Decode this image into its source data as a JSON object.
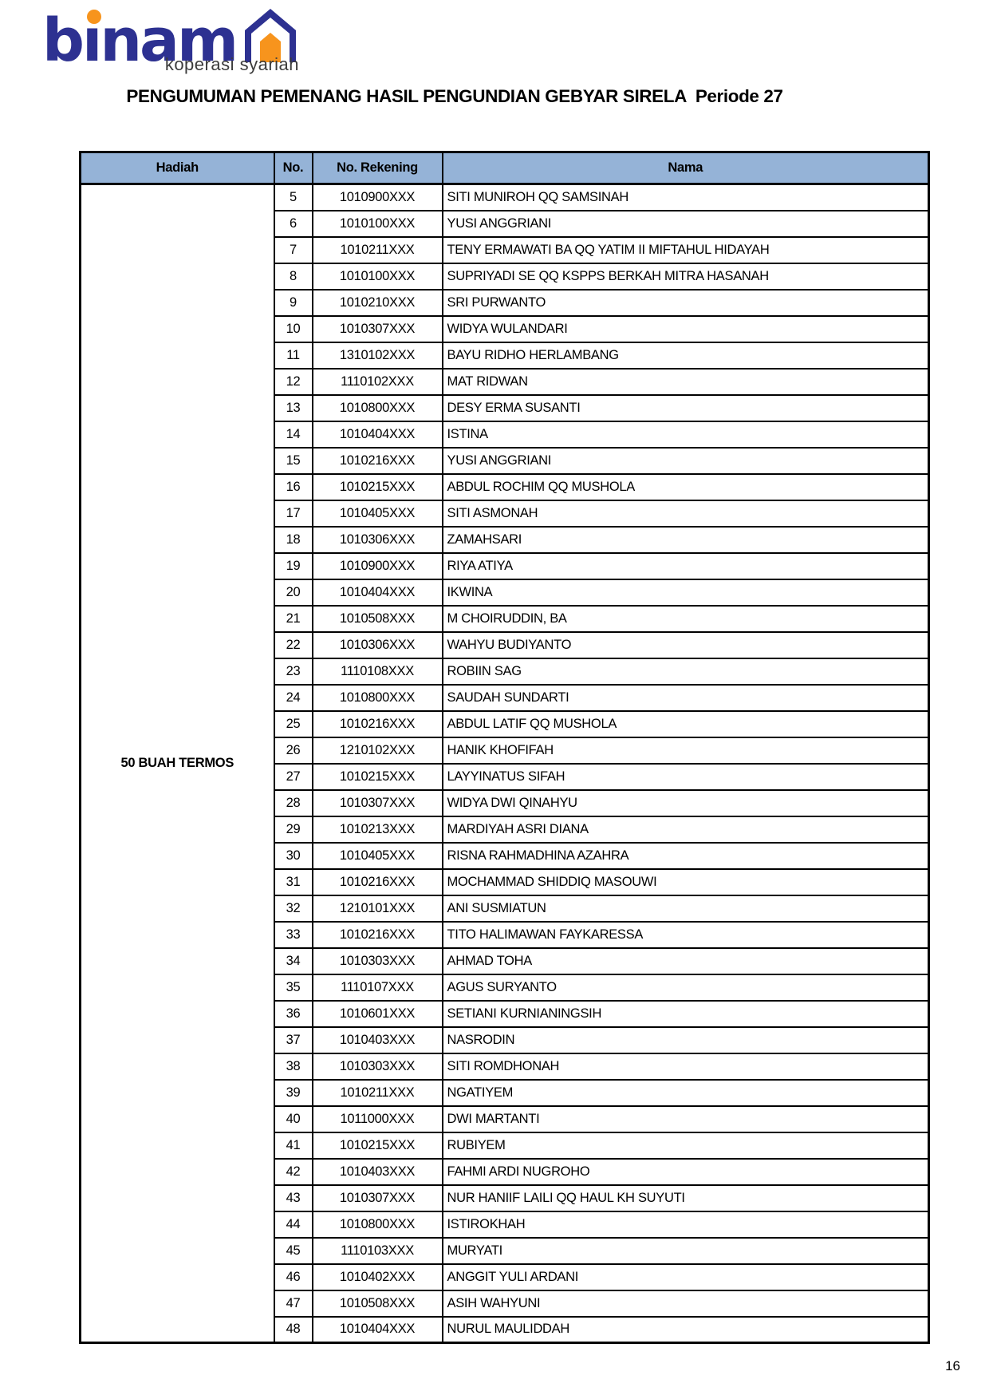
{
  "logo": {
    "brand": "binama",
    "brand_display": "bınam",
    "tagline": "koperasi syariah",
    "colors": {
      "blue": "#2D3191",
      "orange": "#F7941D"
    }
  },
  "title": "PENGUMUMAN PEMENANG HASIL PENGUNDIAN GEBYAR SIRELA  Periode 27",
  "page_number": "16",
  "colors": {
    "header_fill": "#95B3D7",
    "border": "#000000"
  },
  "table": {
    "columns": {
      "hadiah": "Hadiah",
      "no": "No.",
      "rekening": "No. Rekening",
      "nama": "Nama"
    },
    "prize": "50 BUAH TERMOS",
    "rows": [
      {
        "no": "5",
        "rekening": "1010900XXX",
        "nama": "SITI MUNIROH QQ SAMSINAH"
      },
      {
        "no": "6",
        "rekening": "1010100XXX",
        "nama": "YUSI ANGGRIANI"
      },
      {
        "no": "7",
        "rekening": "1010211XXX",
        "nama": "TENY ERMAWATI BA QQ YATIM II MIFTAHUL HIDAYAH"
      },
      {
        "no": "8",
        "rekening": "1010100XXX",
        "nama": "SUPRIYADI SE QQ KSPPS BERKAH MITRA HASANAH"
      },
      {
        "no": "9",
        "rekening": "1010210XXX",
        "nama": "SRI PURWANTO"
      },
      {
        "no": "10",
        "rekening": "1010307XXX",
        "nama": "WIDYA WULANDARI"
      },
      {
        "no": "11",
        "rekening": "1310102XXX",
        "nama": "BAYU RIDHO HERLAMBANG"
      },
      {
        "no": "12",
        "rekening": "1110102XXX",
        "nama": "MAT RIDWAN"
      },
      {
        "no": "13",
        "rekening": "1010800XXX",
        "nama": "DESY ERMA SUSANTI"
      },
      {
        "no": "14",
        "rekening": "1010404XXX",
        "nama": "ISTINA"
      },
      {
        "no": "15",
        "rekening": "1010216XXX",
        "nama": "YUSI ANGGRIANI"
      },
      {
        "no": "16",
        "rekening": "1010215XXX",
        "nama": "ABDUL ROCHIM QQ MUSHOLA"
      },
      {
        "no": "17",
        "rekening": "1010405XXX",
        "nama": "SITI ASMONAH"
      },
      {
        "no": "18",
        "rekening": "1010306XXX",
        "nama": "ZAMAHSARI"
      },
      {
        "no": "19",
        "rekening": "1010900XXX",
        "nama": "RIYA ATIYA"
      },
      {
        "no": "20",
        "rekening": "1010404XXX",
        "nama": "IKWINA"
      },
      {
        "no": "21",
        "rekening": "1010508XXX",
        "nama": "M CHOIRUDDIN, BA"
      },
      {
        "no": "22",
        "rekening": "1010306XXX",
        "nama": "WAHYU BUDIYANTO"
      },
      {
        "no": "23",
        "rekening": "1110108XXX",
        "nama": "ROBIIN SAG"
      },
      {
        "no": "24",
        "rekening": "1010800XXX",
        "nama": "SAUDAH SUNDARTI"
      },
      {
        "no": "25",
        "rekening": "1010216XXX",
        "nama": "ABDUL LATIF QQ MUSHOLA"
      },
      {
        "no": "26",
        "rekening": "1210102XXX",
        "nama": "HANIK KHOFIFAH"
      },
      {
        "no": "27",
        "rekening": "1010215XXX",
        "nama": "LAYYINATUS SIFAH"
      },
      {
        "no": "28",
        "rekening": "1010307XXX",
        "nama": "WIDYA DWI QINAHYU"
      },
      {
        "no": "29",
        "rekening": "1010213XXX",
        "nama": "MARDIYAH ASRI DIANA"
      },
      {
        "no": "30",
        "rekening": "1010405XXX",
        "nama": "RISNA RAHMADHINA AZAHRA"
      },
      {
        "no": "31",
        "rekening": "1010216XXX",
        "nama": "MOCHAMMAD SHIDDIQ MASOUWI"
      },
      {
        "no": "32",
        "rekening": "1210101XXX",
        "nama": "ANI SUSMIATUN"
      },
      {
        "no": "33",
        "rekening": "1010216XXX",
        "nama": "TITO HALIMAWAN FAYKARESSA"
      },
      {
        "no": "34",
        "rekening": "1010303XXX",
        "nama": "AHMAD TOHA"
      },
      {
        "no": "35",
        "rekening": "1110107XXX",
        "nama": "AGUS SURYANTO"
      },
      {
        "no": "36",
        "rekening": "1010601XXX",
        "nama": "SETIANI KURNIANINGSIH"
      },
      {
        "no": "37",
        "rekening": "1010403XXX",
        "nama": "NASRODIN"
      },
      {
        "no": "38",
        "rekening": "1010303XXX",
        "nama": "SITI ROMDHONAH"
      },
      {
        "no": "39",
        "rekening": "1010211XXX",
        "nama": "NGATIYEM"
      },
      {
        "no": "40",
        "rekening": "1011000XXX",
        "nama": "DWI MARTANTI"
      },
      {
        "no": "41",
        "rekening": "1010215XXX",
        "nama": "RUBIYEM"
      },
      {
        "no": "42",
        "rekening": "1010403XXX",
        "nama": "FAHMI ARDI NUGROHO"
      },
      {
        "no": "43",
        "rekening": "1010307XXX",
        "nama": "NUR HANIIF LAILI QQ HAUL KH SUYUTI"
      },
      {
        "no": "44",
        "rekening": "1010800XXX",
        "nama": "ISTIROKHAH"
      },
      {
        "no": "45",
        "rekening": "1110103XXX",
        "nama": "MURYATI"
      },
      {
        "no": "46",
        "rekening": "1010402XXX",
        "nama": "ANGGIT YULI ARDANI"
      },
      {
        "no": "47",
        "rekening": "1010508XXX",
        "nama": "ASIH WAHYUNI"
      },
      {
        "no": "48",
        "rekening": "1010404XXX",
        "nama": "NURUL MAULIDDAH"
      }
    ]
  }
}
